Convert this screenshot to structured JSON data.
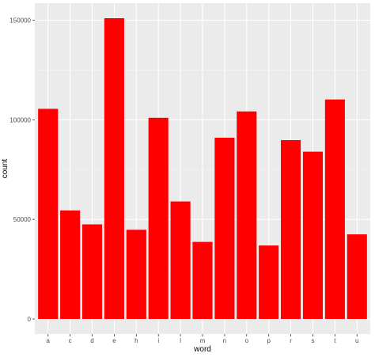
{
  "chart_data": {
    "type": "bar",
    "xlabel": "word",
    "ylabel": "count",
    "categories": [
      "a",
      "c",
      "d",
      "e",
      "h",
      "i",
      "l",
      "m",
      "n",
      "o",
      "p",
      "r",
      "s",
      "t",
      "u"
    ],
    "values": [
      105500,
      54500,
      47500,
      151000,
      44800,
      101000,
      59000,
      38700,
      91000,
      104200,
      36900,
      89800,
      84000,
      110200,
      42500
    ],
    "yticks": [
      0,
      50000,
      100000,
      150000
    ],
    "ytick_labels": [
      "0",
      "50000",
      "100000",
      "150000"
    ],
    "ylim": [
      -7550,
      158550
    ],
    "grid": true,
    "colors": {
      "bar": "#ff0000",
      "panel": "#ebebeb",
      "grid_major": "#ffffff",
      "grid_minor": "#f5f5f5",
      "tick_text": "#4d4d4d"
    }
  }
}
